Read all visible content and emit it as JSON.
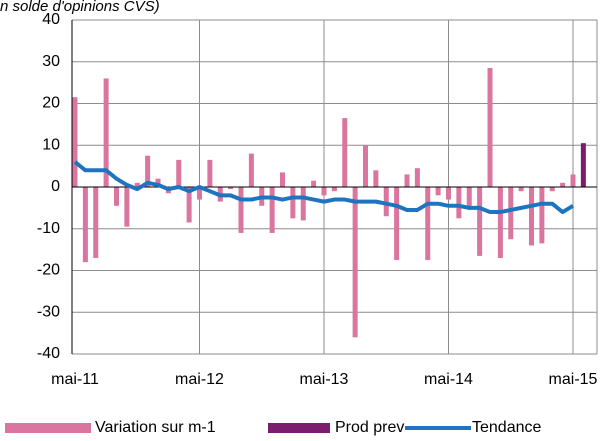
{
  "chart_data": {
    "type": "bar",
    "title": "n solde d'opinions CVS)",
    "categories": [
      "mai-11",
      null,
      null,
      null,
      null,
      null,
      null,
      null,
      null,
      null,
      null,
      null,
      "mai-12",
      null,
      null,
      null,
      null,
      null,
      null,
      null,
      null,
      null,
      null,
      null,
      "mai-13",
      null,
      null,
      null,
      null,
      null,
      null,
      null,
      null,
      null,
      null,
      null,
      "mai-14",
      null,
      null,
      null,
      null,
      null,
      null,
      null,
      null,
      null,
      null,
      null,
      "mai-15",
      null
    ],
    "series": [
      {
        "name": "Variation sur m-1",
        "type": "bar",
        "color": "#d9759e",
        "values": [
          21.5,
          -18,
          -17,
          26,
          -4.5,
          -9.5,
          1,
          7.5,
          2,
          -1.5,
          6.5,
          -8.5,
          -3,
          6.5,
          -3.5,
          -0.5,
          -11,
          8,
          -4.5,
          -11,
          3.5,
          -7.5,
          -8,
          1.5,
          -2,
          -1,
          16.5,
          -36,
          10,
          4,
          -7,
          -17.5,
          3,
          4.5,
          -17.5,
          -2,
          -3,
          -7.5,
          -5,
          -16.5,
          28.5,
          -17,
          -12.5,
          -1,
          -14,
          -13.5,
          -1,
          1,
          3,
          null
        ]
      },
      {
        "name": "Prod prev",
        "type": "bar",
        "color": "#7b1c6e",
        "values": [
          null,
          null,
          null,
          null,
          null,
          null,
          null,
          null,
          null,
          null,
          null,
          null,
          null,
          null,
          null,
          null,
          null,
          null,
          null,
          null,
          null,
          null,
          null,
          null,
          null,
          null,
          null,
          null,
          null,
          null,
          null,
          null,
          null,
          null,
          null,
          null,
          null,
          null,
          null,
          null,
          null,
          null,
          null,
          null,
          null,
          null,
          null,
          null,
          null,
          10.5
        ]
      },
      {
        "name": "Tendance",
        "type": "line",
        "color": "#1f74c2",
        "values": [
          6,
          4,
          4,
          4,
          2,
          0.5,
          -0.5,
          1,
          0.5,
          -0.5,
          0,
          -1,
          0,
          -1,
          -2,
          -2,
          -3,
          -3,
          -2.5,
          -2.5,
          -3,
          -2.5,
          -2.5,
          -3,
          -3.5,
          -3,
          -3,
          -3.5,
          -3.5,
          -3.5,
          -4,
          -4.5,
          -5.5,
          -5.5,
          -4,
          -4,
          -4.5,
          -4.5,
          -5,
          -5,
          -6,
          -6,
          -5.5,
          -5,
          -4.5,
          -4,
          -4,
          -6,
          -4.5,
          null
        ]
      }
    ],
    "ylim": [
      -40,
      40
    ],
    "yticks": [
      -40,
      -30,
      -20,
      -10,
      0,
      10,
      20,
      30,
      40
    ],
    "grid": true
  }
}
